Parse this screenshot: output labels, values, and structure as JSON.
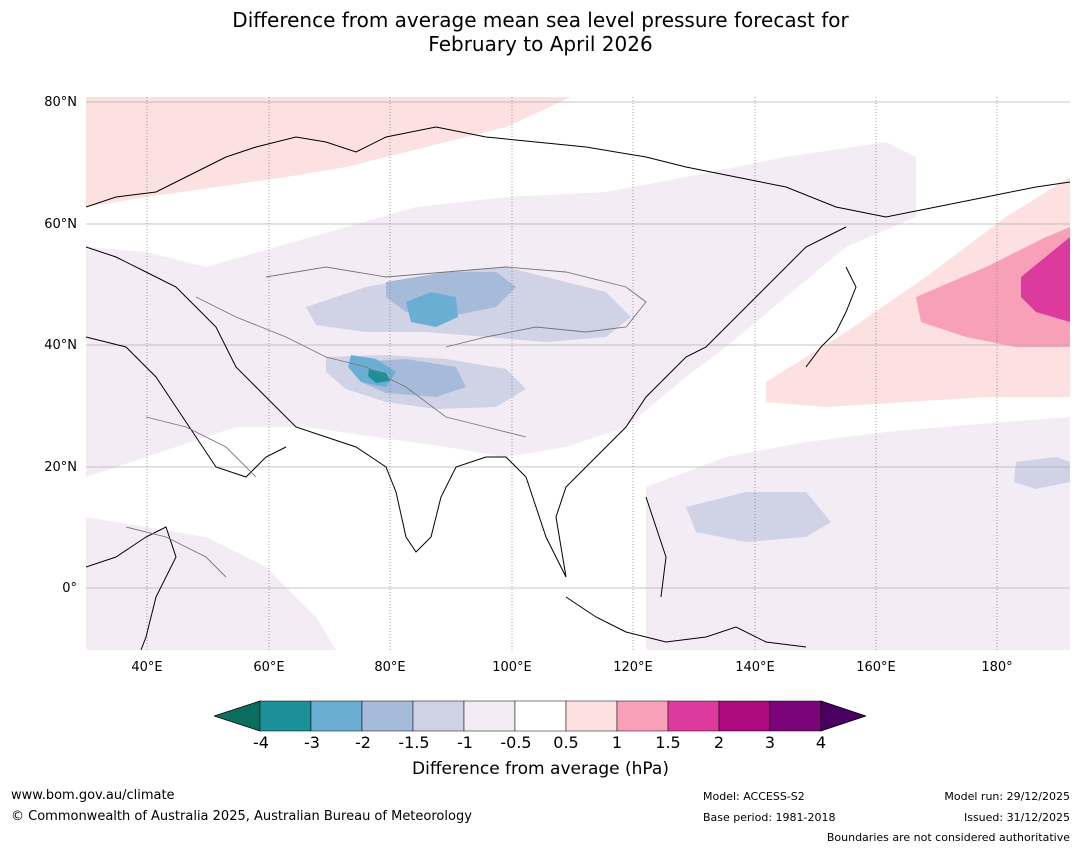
{
  "title": {
    "line1": "Difference from average mean sea level pressure forecast for",
    "line2": "February to April 2026"
  },
  "map": {
    "lat_labels": [
      "80°N",
      "60°N",
      "40°N",
      "20°N",
      "0°"
    ],
    "lon_labels": [
      "40°E",
      "60°E",
      "80°E",
      "100°E",
      "120°E",
      "140°E",
      "160°E",
      "180°"
    ]
  },
  "colorbar": {
    "label": "Difference from average (hPa)",
    "ticks": [
      "-4",
      "-3",
      "-2",
      "-1.5",
      "-1",
      "-0.5",
      "0.5",
      "1",
      "1.5",
      "2",
      "3",
      "4"
    ],
    "colors": {
      "lt_-4": "#0b6d5e",
      "-4_-3": "#1b9098",
      "-3_-2": "#6aaed4",
      "-2_-1.5": "#a6bad9",
      "-1.5_-1": "#d0d2e6",
      "-1_-0.5": "#f3ecf5",
      "-0.5_0.5": "#ffffff",
      "0.5_1": "#fde0e0",
      "1_1.5": "#f8a0b8",
      "1.5_2": "#dc3a9c",
      "2_3": "#ad0a80",
      "3_4": "#7a0479",
      "gt_4": "#4a0060"
    }
  },
  "footer": {
    "website": "www.bom.gov.au/climate",
    "copyright": "© Commonwealth of Australia 2025, Australian Bureau of Meteorology",
    "model": "Model: ACCESS-S2",
    "base_period": "Base period: 1981-2018",
    "model_run": "Model run: 29/12/2025",
    "issued": "Issued: 31/12/2025",
    "disclaimer": "Boundaries are not considered authoritative"
  }
}
